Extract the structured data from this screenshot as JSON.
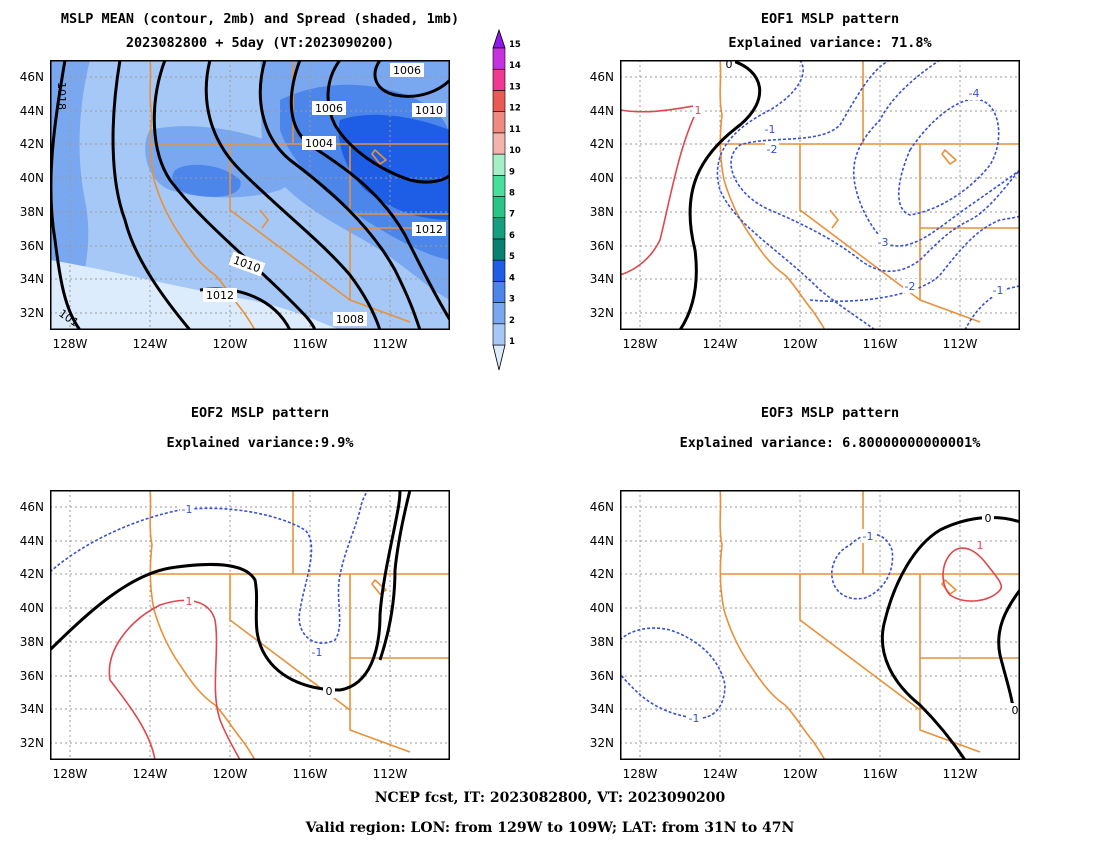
{
  "colors": {
    "coast": "#e8913a",
    "positive": "#e0474c",
    "negative": "#3650d8",
    "zero": "#000000",
    "grid": "#9a9a9a"
  },
  "axes": {
    "lon_ticks": [
      "128W",
      "124W",
      "120W",
      "116W",
      "112W"
    ],
    "lat_ticks": [
      "46N",
      "44N",
      "42N",
      "40N",
      "38N",
      "36N",
      "34N",
      "32N"
    ]
  },
  "colorbar": {
    "labels": [
      "1",
      "2",
      "3",
      "4",
      "5",
      "6",
      "7",
      "8",
      "9",
      "10",
      "11",
      "12",
      "13",
      "14",
      "15"
    ],
    "colors": [
      "#dcecfc",
      "#a6c8f6",
      "#7aa8f0",
      "#4d86ea",
      "#1e5ee6",
      "#0a8070",
      "#14a080",
      "#28c488",
      "#46e09c",
      "#a6efc6",
      "#f4b4ae",
      "#ee8a80",
      "#ea5a52",
      "#f03a92",
      "#c830e0",
      "#9018e8"
    ]
  },
  "panels": [
    {
      "title_line1": "MSLP MEAN (contour, 2mb) and Spread (shaded, 1mb)",
      "title_line2": "2023082800 + 5day (VT:2023090200)",
      "contour_labels": [
        "1006",
        "1010",
        "1006",
        "1004",
        "1010",
        "1012",
        "1012",
        "1008",
        "101",
        "1018"
      ]
    },
    {
      "title_line1": "EOF1 MSLP pattern",
      "title_line2": "Explained variance: 71.8%",
      "contour_labels": [
        "1",
        "0",
        "-1",
        "-2",
        "-3",
        "-4",
        "-2",
        "-1"
      ]
    },
    {
      "title_line1": "EOF2 MSLP pattern",
      "title_line2": "Explained variance:9.9%",
      "contour_labels": [
        "-1",
        "1",
        "-1",
        "0"
      ]
    },
    {
      "title_line1": "EOF3 MSLP pattern",
      "title_line2": "Explained variance: 6.80000000000001%",
      "contour_labels": [
        "-1",
        "1",
        "0",
        "-1",
        "0"
      ]
    }
  ],
  "footer": {
    "line1": "NCEP fcst, IT: 2023082800, VT: 2023090200",
    "line2": "Valid region: LON: from 129W to 109W; LAT: from 31N to 47N"
  },
  "chart_data": [
    {
      "type": "heatmap",
      "title": "MSLP MEAN (contour, 2mb) and Spread (shaded, 1mb)",
      "subtitle": "2023082800 + 5day (VT:2023090200)",
      "xlim": [
        -129,
        -109
      ],
      "ylim": [
        31,
        47
      ],
      "x_ticks": [
        "128W",
        "124W",
        "120W",
        "116W",
        "112W"
      ],
      "y_ticks": [
        "32N",
        "34N",
        "36N",
        "38N",
        "40N",
        "42N",
        "44N",
        "46N"
      ],
      "contour_interval_mb": 2,
      "shading_interval_mb": 1,
      "contour_levels": [
        1004,
        1006,
        1008,
        1010,
        1012,
        1018
      ],
      "spread_range_mb": [
        1,
        5
      ],
      "colorbar_levels": [
        1,
        2,
        3,
        4,
        5,
        6,
        7,
        8,
        9,
        10,
        11,
        12,
        13,
        14,
        15
      ]
    },
    {
      "type": "heatmap",
      "title": "EOF1 MSLP pattern",
      "subtitle": "Explained variance: 71.8%",
      "explained_variance_pct": 71.8,
      "xlim": [
        -129,
        -109
      ],
      "ylim": [
        31,
        47
      ],
      "contour_levels": [
        -4,
        -3,
        -2,
        -1,
        0,
        1
      ]
    },
    {
      "type": "heatmap",
      "title": "EOF2 MSLP pattern",
      "subtitle": "Explained variance:9.9%",
      "explained_variance_pct": 9.9,
      "xlim": [
        -129,
        -109
      ],
      "ylim": [
        31,
        47
      ],
      "contour_levels": [
        -1,
        0,
        1
      ]
    },
    {
      "type": "heatmap",
      "title": "EOF3 MSLP pattern",
      "subtitle": "Explained variance: 6.80000000000001%",
      "explained_variance_pct": 6.80000000000001,
      "xlim": [
        -129,
        -109
      ],
      "ylim": [
        31,
        47
      ],
      "contour_levels": [
        -1,
        0,
        1
      ]
    }
  ]
}
